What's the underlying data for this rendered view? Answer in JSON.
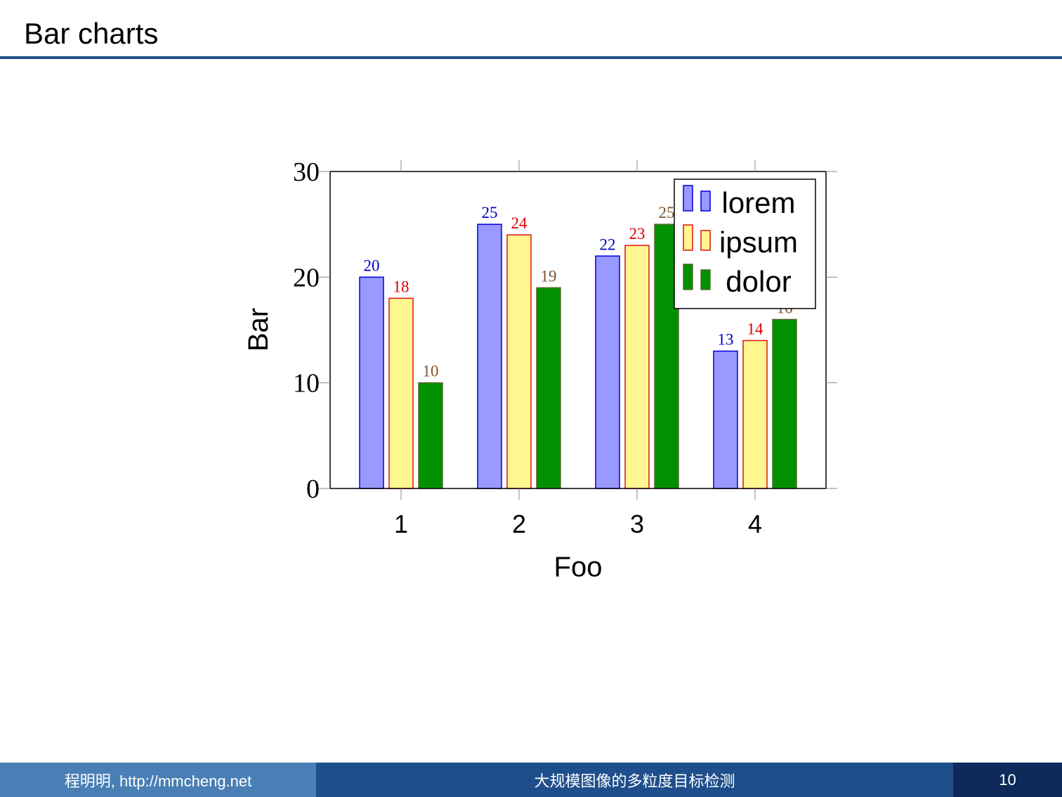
{
  "slide": {
    "title": "Bar charts"
  },
  "footer": {
    "author": "程明明, http://mmcheng.net",
    "topic": "大规模图像的多粒度目标检测",
    "page": "10"
  },
  "colors": {
    "title_rule": "#1f4e8c",
    "footer_left": "#4a7fb5",
    "footer_center": "#1f4e8c",
    "footer_right": "#0d2a5a"
  },
  "chart_data": {
    "type": "bar",
    "title": "",
    "xlabel": "Foo",
    "ylabel": "Bar",
    "categories": [
      "1",
      "2",
      "3",
      "4"
    ],
    "ylim": [
      0,
      30
    ],
    "yticks": [
      0,
      10,
      20,
      30
    ],
    "grid": false,
    "legend_position": "top-right",
    "series": [
      {
        "name": "lorem",
        "values": [
          20,
          25,
          22,
          13
        ],
        "fill": "#9999ff",
        "stroke": "#0000dd",
        "label_color": "#0000cc"
      },
      {
        "name": "ipsum",
        "values": [
          18,
          24,
          23,
          14
        ],
        "fill": "#fff68f",
        "stroke": "#e01010",
        "label_color": "#dd0000"
      },
      {
        "name": "dolor",
        "values": [
          10,
          19,
          25,
          16
        ],
        "fill": "#009000",
        "stroke": "#556b2f",
        "label_color": "#7a5230"
      }
    ]
  }
}
